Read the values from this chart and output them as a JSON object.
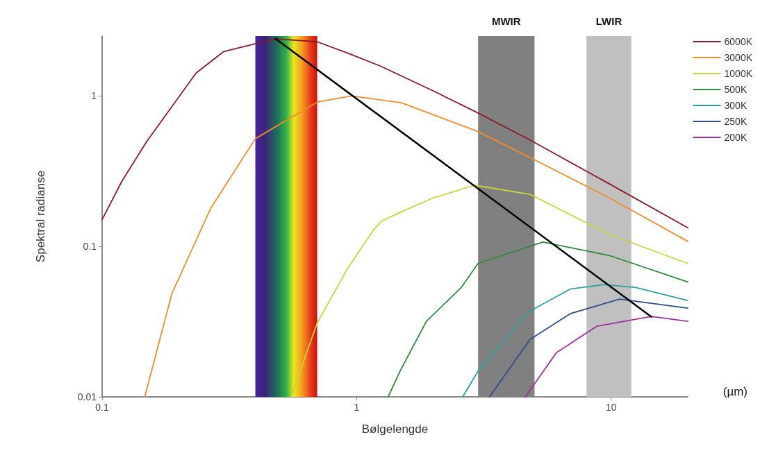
{
  "chart_data": {
    "type": "line",
    "xlabel": "Bølgelengde",
    "ylabel": "Spektral radianse",
    "annotations": [
      "(µm)"
    ],
    "log": "xy",
    "xlim": [
      0.1,
      20
    ],
    "ylim": [
      0.01,
      2.5
    ],
    "xticks": [
      0.1,
      1,
      10
    ],
    "yticks": [
      0.01,
      0.1,
      1
    ],
    "grid": false,
    "legend": "top right",
    "marker": "none",
    "line_style": "solid",
    "bands": [
      {
        "axis": "x",
        "from": 0.4,
        "to": 0.7
      },
      {
        "axis": "x",
        "from": 3,
        "to": 5,
        "label": "MWIR",
        "color": "#808080"
      },
      {
        "axis": "x",
        "from": 8,
        "to": 12,
        "label": "LWIR",
        "color": "#c0c0c0"
      }
    ],
    "series": [
      {
        "name": "6000K",
        "color": "#8b1a2a",
        "x": [
          0.1,
          0.12,
          0.15,
          0.234,
          0.3,
          0.48,
          0.7,
          0.92,
          1.24,
          2,
          3,
          4.8,
          9.85,
          20
        ],
        "values": [
          0.151,
          0.274,
          0.5,
          1.42,
          1.97,
          2.4,
          2.29,
          1.93,
          1.58,
          1.08,
          0.77,
          0.51,
          0.26,
          0.133
        ]
      },
      {
        "name": "3000K",
        "color": "#f28c28",
        "x": [
          0.147,
          0.188,
          0.267,
          0.4,
          0.7,
          0.95,
          1.5,
          2,
          3,
          4.8,
          9.85,
          20
        ],
        "values": [
          0.01,
          0.0486,
          0.179,
          0.52,
          0.91,
          1.0,
          0.9,
          0.75,
          0.58,
          0.39,
          0.21,
          0.108
        ]
      },
      {
        "name": "1000K",
        "color": "#c8d43a",
        "x": [
          0.553,
          0.7,
          0.92,
          1.17,
          1.26,
          1.5,
          2,
          2.9,
          4.8,
          9.85,
          20
        ],
        "values": [
          0.01,
          0.031,
          0.071,
          0.13,
          0.148,
          0.17,
          0.21,
          0.255,
          0.222,
          0.12,
          0.077
        ]
      },
      {
        "name": "500K",
        "color": "#2e8b3e",
        "x": [
          1.33,
          1.48,
          1.88,
          2.57,
          3,
          5.4,
          9.85,
          20
        ],
        "values": [
          0.01,
          0.0148,
          0.0318,
          0.053,
          0.077,
          0.107,
          0.087,
          0.058
        ]
      },
      {
        "name": "300K",
        "color": "#2aa0a0",
        "x": [
          2.61,
          3,
          4.8,
          6.9,
          9.4,
          12.5,
          20
        ],
        "values": [
          0.01,
          0.0148,
          0.0372,
          0.052,
          0.0558,
          0.0533,
          0.0437
        ]
      },
      {
        "name": "250K",
        "color": "#2b4d8a",
        "x": [
          3.33,
          4.8,
          6.9,
          10.8,
          20
        ],
        "values": [
          0.01,
          0.0241,
          0.0357,
          0.0446,
          0.0389
        ]
      },
      {
        "name": "200K",
        "color": "#a2309c",
        "x": [
          4.6,
          6.1,
          8.8,
          14.4,
          20
        ],
        "values": [
          0.01,
          0.0197,
          0.0295,
          0.0342,
          0.0318
        ]
      },
      {
        "color": "#000000",
        "x": [
          0.48,
          14.4
        ],
        "values": [
          2.4,
          0.034
        ]
      }
    ]
  }
}
